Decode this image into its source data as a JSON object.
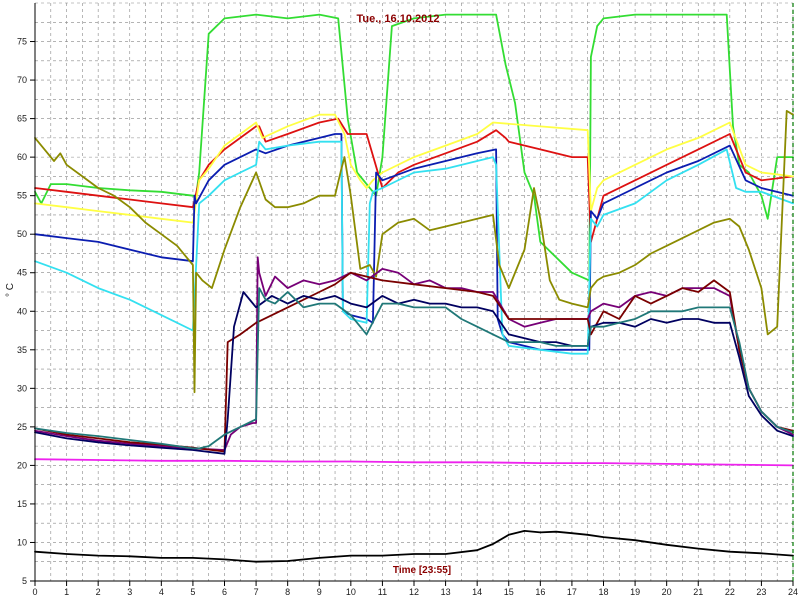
{
  "chart_data": {
    "type": "line",
    "title": "Tue., 16.10.2012",
    "xlabel": "Time [23:55]",
    "ylabel": "° C",
    "xlim": [
      0,
      24
    ],
    "ylim": [
      5,
      80
    ],
    "xticks": [
      "0",
      "1",
      "2",
      "3",
      "4",
      "5",
      "6",
      "7",
      "8",
      "9",
      "10",
      "11",
      "12",
      "13",
      "14",
      "15",
      "16",
      "17",
      "18",
      "19",
      "20",
      "21",
      "22",
      "23",
      "24"
    ],
    "yticks": [
      "5",
      "10",
      "15",
      "20",
      "25",
      "30",
      "35",
      "40",
      "45",
      "50",
      "55",
      "60",
      "65",
      "70",
      "75"
    ],
    "grid": true,
    "colors": {
      "bright_green": "#33dd33",
      "red": "#dd1111",
      "yellow": "#ffff44",
      "blue": "#0b1db0",
      "cyan": "#33e0f0",
      "olive": "#8b8b00",
      "purple": "#770077",
      "dark_red": "#7a0000",
      "navy": "#000060",
      "teal": "#207878",
      "magenta": "#ee22ee",
      "black": "#000000",
      "grid": "#888888",
      "marker": "#007700"
    },
    "series": [
      {
        "color": "bright_green",
        "x": [
          0,
          0.2,
          0.5,
          1,
          2,
          3,
          4,
          5.0,
          5.1,
          5.2,
          5.5,
          6,
          7,
          8,
          9,
          9.6,
          9.9,
          10.2,
          10.5,
          10.8,
          11.0,
          11.3,
          12,
          13,
          14,
          14.6,
          14.9,
          15.2,
          15.5,
          15.8,
          16,
          17,
          17.55,
          17.6,
          17.8,
          18,
          19,
          20,
          21,
          21.9,
          22.1,
          22.3,
          22.6,
          23,
          23.2,
          23.5,
          24
        ],
        "y": [
          55.5,
          54,
          56.5,
          56.5,
          56,
          55.7,
          55.5,
          55,
          55,
          58,
          76,
          78,
          78.5,
          78,
          78.5,
          78,
          65,
          58,
          56.5,
          55,
          60,
          77,
          78,
          78.5,
          78.5,
          78.5,
          72,
          67,
          58,
          55,
          49,
          45,
          44,
          73,
          77,
          78,
          78.5,
          78.5,
          78.5,
          78.5,
          64,
          59,
          58,
          55,
          52,
          60,
          60
        ]
      },
      {
        "color": "red",
        "x": [
          0,
          1,
          2,
          3,
          4,
          5.0,
          5.2,
          5.5,
          6,
          7,
          7.1,
          7.3,
          8,
          9,
          9.6,
          9.9,
          10.5,
          11,
          11.5,
          12,
          13,
          14,
          14.6,
          14.9,
          15,
          16,
          17,
          17.5,
          17.6,
          17.8,
          18,
          19,
          20,
          21,
          22,
          22.5,
          23,
          24
        ],
        "y": [
          56,
          55.5,
          55,
          54.5,
          54,
          53.5,
          57,
          59,
          61,
          64,
          64,
          62,
          63,
          64.5,
          65,
          63,
          63,
          56,
          58,
          59,
          60.5,
          62,
          63.5,
          62.5,
          62,
          61,
          60,
          60,
          49,
          52,
          55,
          57,
          59,
          61,
          63,
          58,
          57,
          57.5
        ]
      },
      {
        "color": "yellow",
        "x": [
          0,
          1,
          2,
          3,
          4,
          5.0,
          5.2,
          5.5,
          6,
          7,
          7.2,
          8,
          9,
          9.5,
          9.8,
          10,
          10.3,
          10.5,
          10.7,
          11,
          12,
          13,
          14,
          14.5,
          17.5,
          17.6,
          17.8,
          18,
          19,
          20,
          21,
          22,
          22.5,
          23,
          24
        ],
        "y": [
          54,
          53.5,
          53,
          52.5,
          52,
          51.5,
          57,
          58.5,
          61.5,
          64.5,
          62.5,
          64,
          65.5,
          65.5,
          63,
          59,
          57,
          56,
          57,
          58,
          60,
          61.5,
          63,
          64.5,
          63.5,
          53,
          56,
          57,
          59,
          61,
          62.5,
          64.5,
          59,
          58,
          57.5
        ]
      },
      {
        "color": "blue",
        "x": [
          0,
          1,
          2,
          3,
          4,
          5.0,
          5.05,
          5.1,
          5.5,
          6,
          7,
          7.3,
          8,
          9,
          9.5,
          9.7,
          9.75,
          10,
          10.5,
          10.7,
          10.8,
          11,
          12,
          13,
          14,
          14.6,
          14.65,
          14.8,
          15,
          15.5,
          16,
          17,
          17.5,
          17.55,
          17.6,
          17.8,
          18,
          19,
          20,
          21,
          22,
          22.5,
          23,
          24
        ],
        "y": [
          50,
          49.5,
          49,
          48,
          47,
          46.5,
          55,
          54,
          57,
          59,
          61,
          60.5,
          61.5,
          62.5,
          63,
          63,
          40,
          39.5,
          39,
          38.5,
          58,
          57,
          58.5,
          59.5,
          60.5,
          61,
          39,
          37,
          36,
          35.5,
          35,
          35,
          35,
          35,
          53,
          52,
          54,
          56,
          58,
          59.5,
          61.5,
          57,
          56,
          55
        ]
      },
      {
        "color": "cyan",
        "x": [
          0,
          1,
          2,
          3,
          4,
          5.0,
          5.2,
          5.5,
          6,
          6.5,
          7,
          7.1,
          7.3,
          8,
          9,
          9.5,
          9.7,
          9.75,
          10,
          10.5,
          10.6,
          10.7,
          11,
          12,
          13,
          14,
          14.5,
          14.6,
          14.8,
          15,
          16,
          17,
          17.5,
          17.6,
          17.8,
          18,
          19,
          20,
          21,
          21.9,
          22.2,
          22.5,
          23,
          24
        ],
        "y": [
          46.5,
          45,
          43,
          41.5,
          39.5,
          37.5,
          54,
          55,
          57,
          58,
          59,
          62,
          61,
          61.5,
          62,
          62,
          62,
          40,
          39,
          38.5,
          54,
          55.5,
          56,
          58,
          58.5,
          59.5,
          60,
          59,
          37,
          35.5,
          35,
          34.5,
          34.5,
          52,
          51,
          52.5,
          54,
          57,
          59,
          61,
          56,
          55.5,
          55.5,
          54
        ]
      },
      {
        "color": "olive",
        "x": [
          0,
          0.3,
          0.6,
          0.8,
          1,
          1.5,
          2,
          2.5,
          3,
          3.5,
          4,
          4.5,
          5.0,
          5.05,
          5.1,
          5.3,
          5.6,
          6,
          6.5,
          7,
          7.3,
          7.6,
          8,
          8.5,
          9,
          9.5,
          9.7,
          9.8,
          10,
          10.3,
          10.6,
          10.8,
          11,
          11.5,
          12,
          12.5,
          13,
          13.5,
          14,
          14.5,
          14.7,
          15,
          15.5,
          15.8,
          16.0,
          16.3,
          16.6,
          17,
          17.5,
          17.6,
          17.8,
          18,
          18.5,
          19,
          19.5,
          20,
          20.5,
          21,
          21.5,
          22,
          22.3,
          22.6,
          23,
          23.2,
          23.5,
          23.8,
          24
        ],
        "y": [
          62.5,
          61,
          59.5,
          60.5,
          59,
          57.5,
          56,
          55,
          53.5,
          51.5,
          50,
          48.5,
          46,
          29.5,
          45,
          44,
          43,
          48,
          53.5,
          58,
          54.5,
          53.5,
          53.5,
          54,
          55,
          55,
          58.5,
          60,
          55,
          45.5,
          46,
          44.5,
          50,
          51.5,
          52,
          50.5,
          51,
          51.5,
          52,
          52.5,
          46,
          43,
          48,
          56,
          52,
          44,
          41.5,
          41,
          40.5,
          43,
          44,
          44.5,
          45,
          46,
          47.5,
          48.5,
          49.5,
          50.5,
          51.5,
          52,
          51,
          48,
          43,
          37,
          38,
          66,
          65.5
        ]
      },
      {
        "color": "purple",
        "x": [
          0,
          1,
          2,
          3,
          4,
          5,
          6,
          6.2,
          6.5,
          6.9,
          7.0,
          7.05,
          7.1,
          7.3,
          7.6,
          8,
          8.5,
          9,
          9.5,
          10,
          10.5,
          11,
          11.5,
          12,
          12.5,
          13,
          13.5,
          14,
          14.5,
          15,
          15.5,
          16,
          16.5,
          17,
          17.5,
          17.6,
          18,
          18.5,
          19,
          19.5,
          20,
          20.5,
          21,
          21.5,
          22,
          22.3,
          22.6,
          23,
          23.5,
          24
        ],
        "y": [
          24.5,
          23.8,
          23.2,
          22.8,
          22.5,
          22.2,
          22,
          24,
          25,
          25.5,
          25.5,
          47,
          45,
          42,
          44.5,
          43,
          44,
          43.5,
          44,
          45,
          44,
          45.5,
          45,
          43.5,
          44,
          43,
          43,
          42.5,
          42.5,
          39,
          38,
          38.5,
          39,
          39,
          39,
          40,
          41,
          40.5,
          42,
          42.5,
          42,
          43,
          43,
          43,
          42,
          35,
          30,
          27,
          25,
          24
        ]
      },
      {
        "color": "dark_red",
        "x": [
          0,
          1,
          2,
          3,
          4,
          5,
          6,
          6.1,
          6.5,
          7,
          8,
          9,
          9.5,
          10,
          11,
          12,
          13,
          14,
          14.5,
          15,
          16,
          17,
          17.5,
          17.6,
          18,
          18.5,
          19,
          19.5,
          20,
          20.5,
          21,
          21.5,
          22,
          22.3,
          22.6,
          23,
          23.5,
          24
        ],
        "y": [
          24.8,
          24,
          23.5,
          23,
          22.7,
          22.3,
          21.8,
          36,
          37,
          38.5,
          40.5,
          42.5,
          43.5,
          45,
          44,
          43.5,
          43,
          42.5,
          42,
          39,
          39,
          39,
          39,
          37,
          40,
          39,
          42,
          41,
          42,
          43,
          42.5,
          44,
          42.5,
          35,
          30,
          27,
          25,
          24.5
        ]
      },
      {
        "color": "navy",
        "x": [
          0,
          1,
          2,
          3,
          4,
          5,
          6,
          6.1,
          6.3,
          6.6,
          7,
          7.5,
          8,
          8.5,
          9,
          9.5,
          10,
          10.5,
          11,
          11.5,
          12,
          12.5,
          13,
          13.5,
          14,
          14.5,
          15,
          15.5,
          16,
          16.5,
          17,
          17.5,
          17.6,
          18,
          18.5,
          19,
          19.5,
          20,
          20.5,
          21,
          21.5,
          22,
          22.3,
          22.6,
          23,
          23.5,
          24
        ],
        "y": [
          24.3,
          23.5,
          23,
          22.6,
          22.3,
          22,
          21.5,
          26,
          38,
          42.5,
          40.5,
          42,
          41,
          42,
          41.5,
          42,
          41,
          40.5,
          42,
          41,
          41.5,
          41,
          41,
          40.5,
          40.5,
          40,
          37,
          36.5,
          36,
          36,
          35.5,
          35.5,
          38,
          38.5,
          38.5,
          38,
          39,
          38.5,
          39,
          39,
          38.5,
          38.5,
          34,
          29,
          26.5,
          24.5,
          23.8
        ]
      },
      {
        "color": "teal",
        "x": [
          0,
          1,
          2,
          3,
          4,
          5,
          5.2,
          5.5,
          6,
          6.5,
          7,
          7.1,
          7.3,
          7.6,
          8,
          8.5,
          9,
          9.5,
          10,
          10.5,
          11,
          11.5,
          12,
          12.5,
          13,
          13.5,
          14,
          14.5,
          15,
          15.5,
          16,
          16.5,
          17,
          17.5,
          17.6,
          18,
          18.5,
          19,
          19.5,
          20,
          20.5,
          21,
          21.5,
          22,
          22.3,
          22.6,
          23,
          23.5,
          24
        ],
        "y": [
          24.8,
          24.2,
          23.8,
          23.3,
          22.8,
          22.2,
          22.2,
          22.5,
          24,
          25,
          26,
          43,
          41.5,
          41,
          42.5,
          40.5,
          41,
          41,
          39.5,
          37,
          41,
          41,
          40.5,
          40.5,
          40.5,
          39,
          38,
          37,
          36,
          36,
          36,
          35.5,
          35.5,
          35.5,
          38,
          38,
          38.5,
          39,
          40,
          40,
          40,
          40.5,
          40.5,
          40.5,
          36,
          30,
          27,
          25,
          24.3
        ]
      },
      {
        "color": "magenta",
        "x": [
          0,
          2,
          4,
          6,
          8,
          10,
          12,
          14,
          16,
          18,
          20,
          22,
          24
        ],
        "y": [
          20.8,
          20.7,
          20.6,
          20.6,
          20.5,
          20.5,
          20.4,
          20.4,
          20.3,
          20.3,
          20.2,
          20.1,
          20
        ]
      },
      {
        "color": "black",
        "x": [
          0,
          1,
          2,
          3,
          4,
          5,
          6,
          7,
          8,
          9,
          10,
          11,
          12,
          13,
          14,
          14.5,
          15,
          15.5,
          16,
          16.5,
          17,
          17.5,
          18,
          19,
          20,
          21,
          22,
          23,
          24
        ],
        "y": [
          8.8,
          8.5,
          8.3,
          8.2,
          8,
          8,
          7.8,
          7.5,
          7.6,
          8,
          8.3,
          8.3,
          8.5,
          8.5,
          9,
          9.8,
          11,
          11.5,
          11.3,
          11.4,
          11.2,
          11,
          10.7,
          10.3,
          9.7,
          9.2,
          8.8,
          8.6,
          8.3
        ]
      }
    ]
  }
}
